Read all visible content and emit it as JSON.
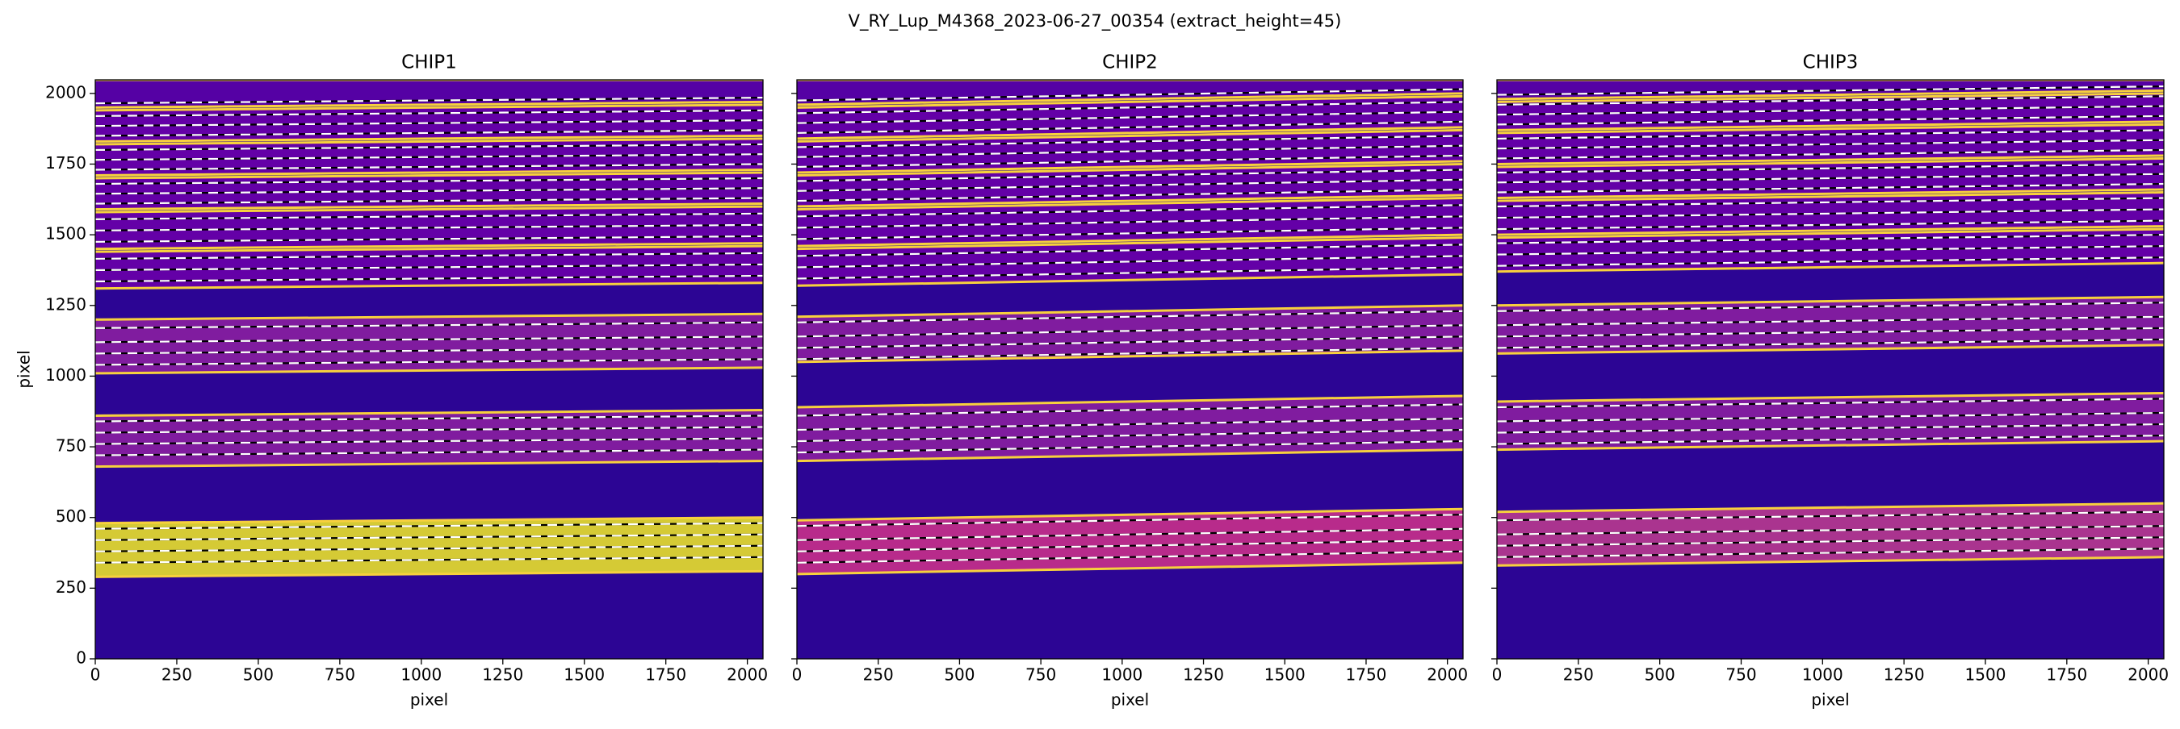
{
  "figure_title": "V_RY_Lup_M4368_2023-06-27_00354  (extract_height=45)",
  "chart_data": [
    {
      "type": "image",
      "title": "CHIP1",
      "xlabel": "pixel",
      "ylabel": "pixel",
      "xlim": [
        0,
        2048
      ],
      "ylim": [
        0,
        2048
      ],
      "xticks": [
        0,
        250,
        500,
        750,
        1000,
        1250,
        1500,
        1750,
        2000
      ],
      "yticks": [
        0,
        250,
        500,
        750,
        1000,
        1250,
        1500,
        1750,
        2000
      ],
      "background": "#2c0594",
      "orders": [
        {
          "y": [
            1310,
            1440,
            1330,
            1460
          ],
          "color": "#6a00a8"
        },
        {
          "y": [
            1450,
            1580,
            1470,
            1600
          ],
          "color": "#6a00a8"
        },
        {
          "y": [
            1590,
            1700,
            1610,
            1720
          ],
          "color": "#6a00a8"
        },
        {
          "y": [
            1710,
            1820,
            1730,
            1840
          ],
          "color": "#6a00a8"
        },
        {
          "y": [
            1830,
            1940,
            1850,
            1960
          ],
          "color": "#6a00a8"
        },
        {
          "y": [
            1950,
            2048,
            1970,
            2048
          ],
          "color": "#5a01a5"
        },
        {
          "y": [
            1010,
            1200,
            1030,
            1220
          ],
          "color": "#8a1fa0"
        },
        {
          "y": [
            680,
            860,
            700,
            880
          ],
          "color": "#8a1fa0"
        },
        {
          "y": [
            290,
            480,
            310,
            500
          ],
          "color": "#e8e02a"
        }
      ],
      "traces": [
        [
          1335,
          1355
        ],
        [
          1375,
          1395
        ],
        [
          1415,
          1435
        ],
        [
          1475,
          1495
        ],
        [
          1515,
          1535
        ],
        [
          1555,
          1575
        ],
        [
          1610,
          1630
        ],
        [
          1645,
          1665
        ],
        [
          1680,
          1700
        ],
        [
          1730,
          1750
        ],
        [
          1765,
          1785
        ],
        [
          1800,
          1820
        ],
        [
          1850,
          1870
        ],
        [
          1885,
          1905
        ],
        [
          1920,
          1940
        ],
        [
          1965,
          1985
        ],
        [
          1040,
          1060
        ],
        [
          1080,
          1100
        ],
        [
          1120,
          1140
        ],
        [
          1170,
          1190
        ],
        [
          720,
          740
        ],
        [
          760,
          780
        ],
        [
          800,
          820
        ],
        [
          840,
          860
        ],
        [
          340,
          360
        ],
        [
          380,
          400
        ],
        [
          420,
          440
        ],
        [
          460,
          480
        ]
      ]
    },
    {
      "type": "image",
      "title": "CHIP2",
      "xlabel": "pixel",
      "xlim": [
        0,
        2048
      ],
      "ylim": [
        0,
        2048
      ],
      "xticks": [
        0,
        250,
        500,
        750,
        1000,
        1250,
        1500,
        1750,
        2000
      ],
      "yticks": [
        0,
        250,
        500,
        750,
        1000,
        1250,
        1500,
        1750,
        2000
      ],
      "background": "#2c0594",
      "orders": [
        {
          "y": [
            1320,
            1450,
            1360,
            1490
          ],
          "color": "#6a00a8"
        },
        {
          "y": [
            1460,
            1590,
            1500,
            1630
          ],
          "color": "#6a00a8"
        },
        {
          "y": [
            1600,
            1710,
            1640,
            1750
          ],
          "color": "#6a00a8"
        },
        {
          "y": [
            1720,
            1830,
            1760,
            1870
          ],
          "color": "#6a00a8"
        },
        {
          "y": [
            1840,
            1950,
            1880,
            1990
          ],
          "color": "#6a00a8"
        },
        {
          "y": [
            1960,
            2048,
            2000,
            2048
          ],
          "color": "#5a01a5"
        },
        {
          "y": [
            1050,
            1210,
            1090,
            1250
          ],
          "color": "#8a1fa0"
        },
        {
          "y": [
            700,
            890,
            740,
            930
          ],
          "color": "#8a1fa0"
        },
        {
          "y": [
            300,
            490,
            340,
            530
          ],
          "color": "#c8308a"
        }
      ],
      "traces": [
        [
          1345,
          1385
        ],
        [
          1385,
          1425
        ],
        [
          1425,
          1465
        ],
        [
          1485,
          1525
        ],
        [
          1525,
          1565
        ],
        [
          1565,
          1605
        ],
        [
          1620,
          1660
        ],
        [
          1655,
          1695
        ],
        [
          1690,
          1730
        ],
        [
          1740,
          1780
        ],
        [
          1775,
          1815
        ],
        [
          1810,
          1850
        ],
        [
          1860,
          1900
        ],
        [
          1895,
          1935
        ],
        [
          1930,
          1970
        ],
        [
          1975,
          2015
        ],
        [
          1060,
          1100
        ],
        [
          1100,
          1140
        ],
        [
          1140,
          1180
        ],
        [
          1190,
          1230
        ],
        [
          730,
          770
        ],
        [
          770,
          810
        ],
        [
          810,
          850
        ],
        [
          860,
          900
        ],
        [
          340,
          380
        ],
        [
          380,
          420
        ],
        [
          420,
          460
        ],
        [
          470,
          510
        ]
      ]
    },
    {
      "type": "image",
      "title": "CHIP3",
      "xlabel": "pixel",
      "xlim": [
        0,
        2048
      ],
      "ylim": [
        0,
        2048
      ],
      "xticks": [
        0,
        250,
        500,
        750,
        1000,
        1250,
        1500,
        1750,
        2000
      ],
      "yticks": [
        0,
        250,
        500,
        750,
        1000,
        1250,
        1500,
        1750,
        2000
      ],
      "background": "#2c0594",
      "orders": [
        {
          "y": [
            1370,
            1490,
            1400,
            1520
          ],
          "color": "#6a00a8"
        },
        {
          "y": [
            1500,
            1620,
            1530,
            1650
          ],
          "color": "#6a00a8"
        },
        {
          "y": [
            1630,
            1740,
            1660,
            1770
          ],
          "color": "#6a00a8"
        },
        {
          "y": [
            1750,
            1860,
            1780,
            1890
          ],
          "color": "#6a00a8"
        },
        {
          "y": [
            1870,
            1970,
            1900,
            2000
          ],
          "color": "#6a00a8"
        },
        {
          "y": [
            1980,
            2048,
            2010,
            2048
          ],
          "color": "#5a01a5"
        },
        {
          "y": [
            1080,
            1250,
            1110,
            1280
          ],
          "color": "#8a1fa0"
        },
        {
          "y": [
            740,
            910,
            770,
            940
          ],
          "color": "#8a1fa0"
        },
        {
          "y": [
            330,
            520,
            360,
            550
          ],
          "color": "#b83a8e"
        }
      ],
      "traces": [
        [
          1390,
          1420
        ],
        [
          1430,
          1460
        ],
        [
          1470,
          1500
        ],
        [
          1520,
          1550
        ],
        [
          1560,
          1590
        ],
        [
          1600,
          1630
        ],
        [
          1650,
          1680
        ],
        [
          1685,
          1715
        ],
        [
          1720,
          1750
        ],
        [
          1770,
          1800
        ],
        [
          1805,
          1835
        ],
        [
          1840,
          1870
        ],
        [
          1890,
          1920
        ],
        [
          1925,
          1955
        ],
        [
          1960,
          1990
        ],
        [
          1995,
          2025
        ],
        [
          1100,
          1130
        ],
        [
          1140,
          1170
        ],
        [
          1180,
          1210
        ],
        [
          1230,
          1260
        ],
        [
          760,
          790
        ],
        [
          800,
          830
        ],
        [
          840,
          870
        ],
        [
          890,
          920
        ],
        [
          360,
          390
        ],
        [
          400,
          430
        ],
        [
          440,
          470
        ],
        [
          490,
          520
        ]
      ]
    }
  ]
}
